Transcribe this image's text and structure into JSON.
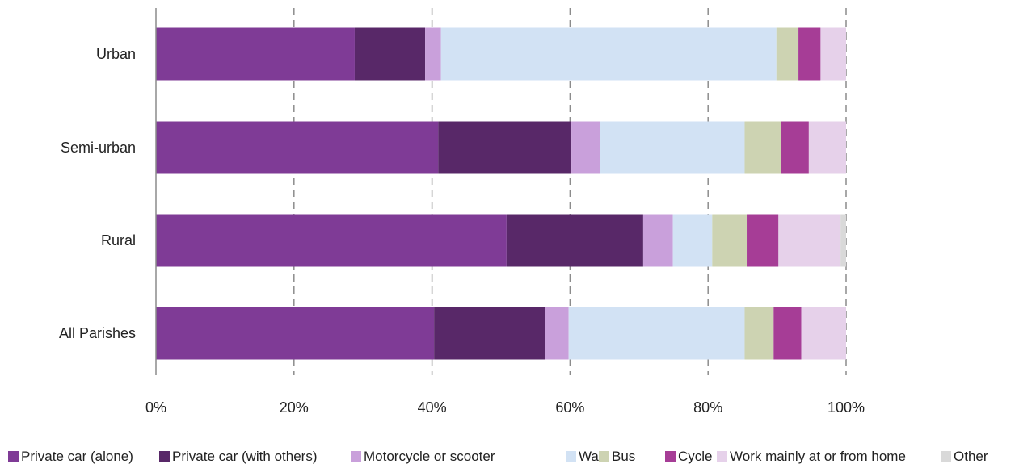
{
  "chart_data": {
    "type": "bar",
    "orientation": "horizontal",
    "stacked": "percent",
    "categories": [
      "Urban",
      "Semi-urban",
      "Rural",
      "All Parishes"
    ],
    "series": [
      {
        "name": "Private car (alone)",
        "color": "#7F3B96",
        "values": [
          28.8,
          40.9,
          50.8,
          40.3
        ]
      },
      {
        "name": "Private car (with others)",
        "color": "#582868",
        "values": [
          10.2,
          19.3,
          19.8,
          16.1
        ]
      },
      {
        "name": "Motorcycle or scooter",
        "color": "#C9A0DB",
        "values": [
          2.3,
          4.2,
          4.3,
          3.4
        ]
      },
      {
        "name": "Walk",
        "color": "#D2E2F4",
        "values": [
          48.6,
          20.9,
          5.7,
          25.5
        ]
      },
      {
        "name": "Bus",
        "color": "#CDD3B2",
        "values": [
          3.2,
          5.3,
          5.0,
          4.2
        ]
      },
      {
        "name": "Cycle",
        "color": "#A63D96",
        "values": [
          3.2,
          4.0,
          4.6,
          4.0
        ]
      },
      {
        "name": "Work mainly at or from home",
        "color": "#E6D1EA",
        "values": [
          3.7,
          5.4,
          9.0,
          6.5
        ]
      },
      {
        "name": "Other",
        "color": "#D9D9D9",
        "values": [
          0.0,
          0.0,
          0.8,
          0.0
        ]
      }
    ],
    "xlim": [
      0,
      100
    ],
    "x_ticks": [
      "0%",
      "20%",
      "40%",
      "60%",
      "80%",
      "100%"
    ],
    "grid": "vertical dashed",
    "legend_position": "bottom",
    "title": "",
    "xlabel": "",
    "ylabel": ""
  }
}
